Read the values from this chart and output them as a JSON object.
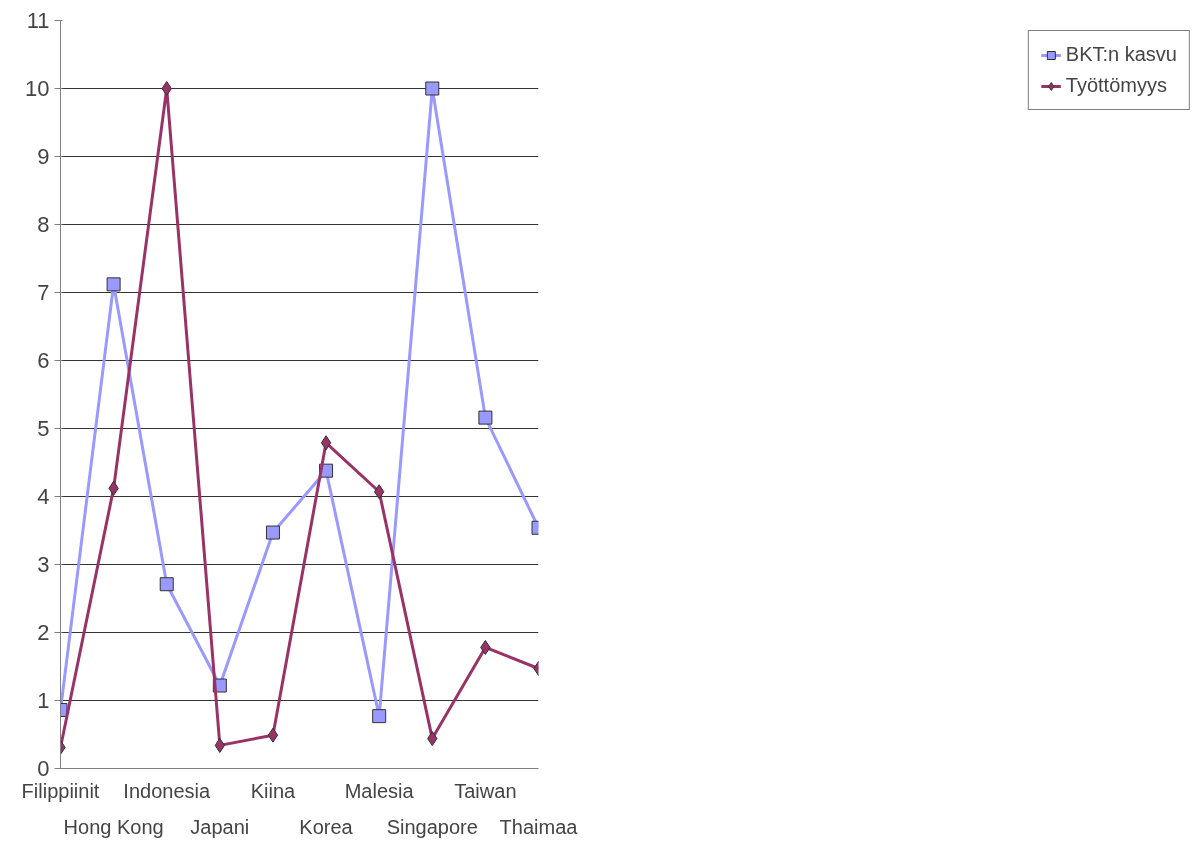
{
  "chart_data": {
    "type": "line",
    "categories": [
      "Filippiinit",
      "Hong Kong",
      "Indonesia",
      "Japani",
      "Kiina",
      "Korea",
      "Malesia",
      "Singapore",
      "Taiwan",
      "Thaimaa"
    ],
    "series": [
      {
        "name": "BKT:n kasvu",
        "color": "#9999ff",
        "marker": "square",
        "values": [
          0.86,
          7.12,
          2.71,
          1.22,
          3.47,
          4.38,
          0.77,
          10.0,
          5.16,
          3.54
        ]
      },
      {
        "name": "Työttömyys",
        "color": "#993366",
        "marker": "diamond",
        "values": [
          0.31,
          4.12,
          10.0,
          0.34,
          0.49,
          4.79,
          4.07,
          0.44,
          1.78,
          1.47
        ]
      }
    ],
    "ylim": [
      0,
      11
    ],
    "yticks": [
      0,
      1,
      2,
      3,
      4,
      5,
      6,
      7,
      8,
      9,
      10,
      11
    ],
    "grid": "y",
    "legend": "right",
    "line_style": "solid"
  }
}
